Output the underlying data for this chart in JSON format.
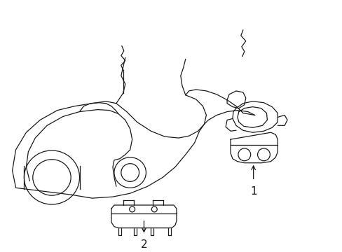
{
  "background_color": "#ffffff",
  "line_color": "#1a1a1a",
  "line_width": 0.9,
  "fig_width": 4.89,
  "fig_height": 3.6,
  "label_1": "1",
  "label_2": "2"
}
